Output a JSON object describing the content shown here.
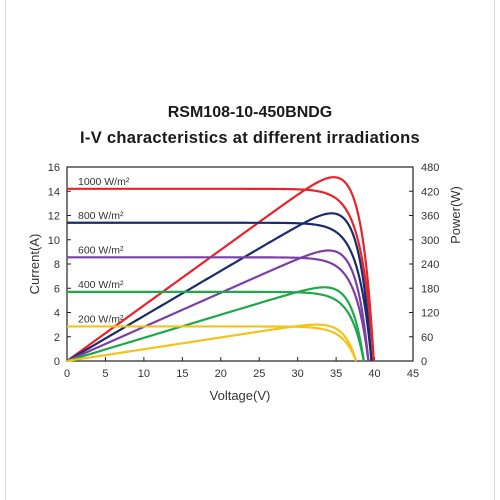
{
  "chart_data": {
    "type": "line",
    "title": "RSM108-10-450BNDG",
    "subtitle": "I-V characteristics at different irradiations",
    "xlabel": "Voltage(V)",
    "ylabel": "Current(A)",
    "y2label": "Power(W)",
    "xlim": [
      0,
      45
    ],
    "ylim": [
      0,
      16
    ],
    "y2lim": [
      0,
      480
    ],
    "xticks": [
      "0",
      "5",
      "10",
      "15",
      "20",
      "25",
      "30",
      "35",
      "40",
      "45"
    ],
    "yticks": [
      "0",
      "2",
      "4",
      "6",
      "8",
      "10",
      "12",
      "14",
      "16"
    ],
    "y2ticks": [
      "0",
      "60",
      "120",
      "180",
      "240",
      "300",
      "360",
      "420",
      "480"
    ],
    "grid": false,
    "series": [
      {
        "name": "1000 W/m²",
        "color": "#e8232a",
        "isc": 14.2,
        "voc": 39.9,
        "pmax_v": 33.5,
        "pmax": 450
      },
      {
        "name": "800 W/m²",
        "color": "#1a2b6b",
        "isc": 11.4,
        "voc": 39.6,
        "pmax_v": 33.3,
        "pmax": 362
      },
      {
        "name": "600 W/m²",
        "color": "#7b3fa8",
        "isc": 8.55,
        "voc": 39.2,
        "pmax_v": 33.2,
        "pmax": 272
      },
      {
        "name": "400 W/m²",
        "color": "#1fa84a",
        "isc": 5.7,
        "voc": 38.6,
        "pmax_v": 33.0,
        "pmax": 182
      },
      {
        "name": "200 W/m²",
        "color": "#f2c41b",
        "isc": 2.85,
        "voc": 37.6,
        "pmax_v": 32.5,
        "pmax": 90
      }
    ]
  }
}
